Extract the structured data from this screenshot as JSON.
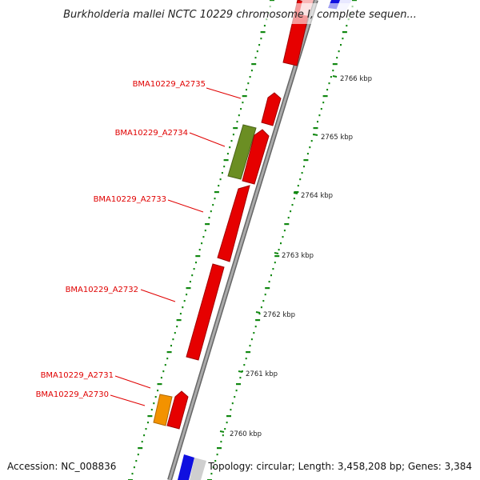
{
  "title": "Burkholderia mallei NCTC 10229 chromosome I, complete sequen...",
  "footer": {
    "accession": "Accession: NC_008836",
    "stats": "Topology: circular; Length: 3,458,208 bp; Genes: 3,384"
  },
  "colors": {
    "cds_red": "#e60000",
    "cds_green": "#6b8e23",
    "cds_orange": "#f39200",
    "cds_blue": "#1010e0",
    "cds_pink": "#f8b8b8",
    "cds_grey": "#cfcfcf",
    "tick_green": "#118811",
    "backbone": "#888888",
    "label_red": "#e00000"
  },
  "scale_ticks": [
    {
      "label": "2766 kbp"
    },
    {
      "label": "2765 kbp"
    },
    {
      "label": "2764 kbp"
    },
    {
      "label": "2763 kbp"
    },
    {
      "label": "2762 kbp"
    },
    {
      "label": "2761 kbp"
    },
    {
      "label": "2760 kbp"
    }
  ],
  "gene_labels": [
    {
      "label": "BMA10229_A2735"
    },
    {
      "label": "BMA10229_A2734"
    },
    {
      "label": "BMA10229_A2733"
    },
    {
      "label": "BMA10229_A2732"
    },
    {
      "label": "BMA10229_A2731"
    },
    {
      "label": "BMA10229_A2730"
    }
  ]
}
